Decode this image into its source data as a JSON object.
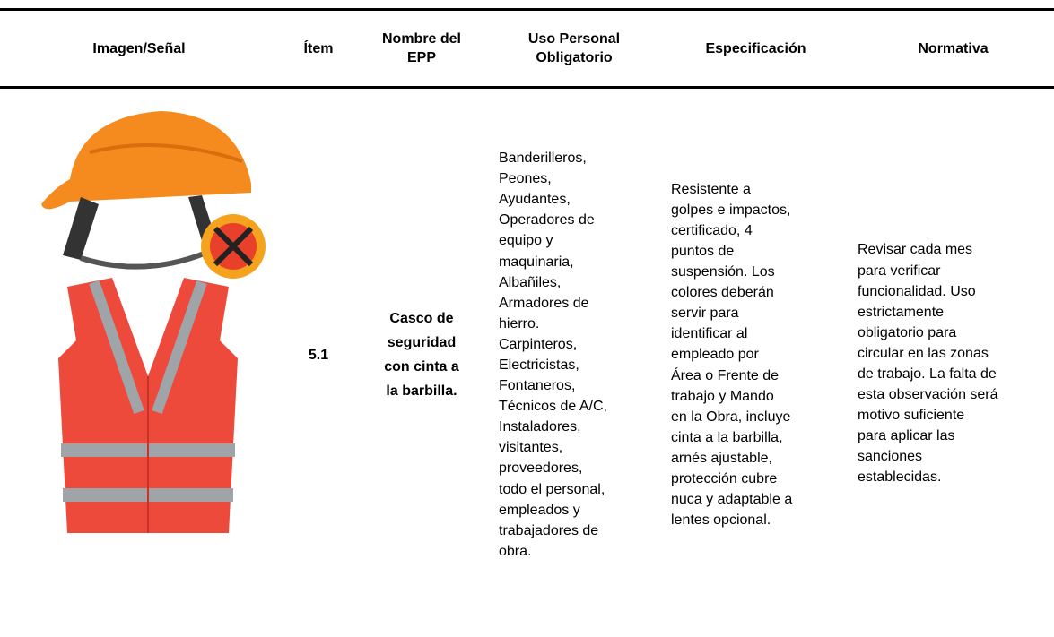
{
  "table": {
    "header": [
      [
        "Imagen/Señal"
      ],
      [
        "Ítem"
      ],
      [
        "Nombre del",
        "EPP"
      ],
      [
        "Uso Personal",
        "Obligatorio"
      ],
      [
        "Especificación"
      ],
      [
        "Normativa"
      ]
    ],
    "rows": [
      {
        "item": "5.1",
        "nombre": [
          "Casco de",
          "seguridad",
          "con cinta a",
          "la barbilla."
        ],
        "uso": [
          "Banderilleros,",
          "Peones,",
          "Ayudantes,",
          "Operadores de",
          "equipo y",
          "maquinaria,",
          "Albañiles,",
          "Armadores de",
          "hierro.",
          "Carpinteros,",
          "Electricistas,",
          "Fontaneros,",
          "Técnicos de A/C,",
          "Instaladores,",
          "visitantes,",
          "proveedores,",
          "todo el personal,",
          "empleados y",
          "trabajadores de",
          "obra."
        ],
        "especificacion": [
          "Resistente a",
          "golpes e impactos,",
          "certificado, 4",
          "puntos de",
          "suspensión. Los",
          "colores deberán",
          "servir para",
          "identificar al",
          "empleado por",
          "Área o Frente de",
          "trabajo y Mando",
          "en la Obra, incluye",
          "cinta a la barbilla,",
          "arnés ajustable,",
          "protección cubre",
          "nuca y adaptable a",
          "lentes opcional."
        ],
        "normativa": [
          "Revisar cada mes",
          "para verificar",
          "funcionalidad. Uso",
          "estrictamente",
          "obligatorio para",
          "circular en las zonas",
          "de trabajo. La falta de",
          "esta observación será",
          "motivo suficiente",
          "para aplicar las",
          "sanciones",
          "establecidas."
        ]
      }
    ]
  }
}
